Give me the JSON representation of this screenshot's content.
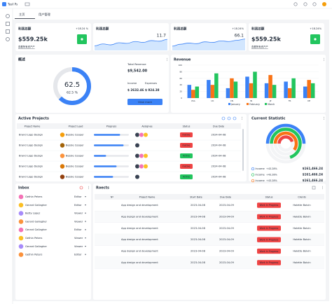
{
  "header": {
    "logo": "Tasil Ps",
    "tabs": [
      "主页",
      "用户管理"
    ]
  },
  "cards": [
    {
      "title": "利润总额",
      "change": "+18.24 %",
      "value": "$559.25k",
      "link": "查看所有资产产"
    },
    {
      "title": "利润总额",
      "value": "11.7",
      "trend": [
        30,
        42,
        36,
        50,
        46,
        58,
        52,
        64,
        60,
        72
      ]
    },
    {
      "title": "利润总额",
      "change": "+18.24%",
      "value": "66.1",
      "trend": [
        28,
        40,
        48,
        44,
        56,
        52,
        62,
        58,
        66,
        74
      ]
    },
    {
      "title": "利润总额",
      "change": "+18.24%",
      "value": "$559.25k",
      "link": "查看所有资产产"
    }
  ],
  "overview": {
    "title": "概述",
    "percent": 62.5,
    "percent_label": "62.5",
    "percent_caption": "62.5 %",
    "total_label": "Total Revenue",
    "total": "$9,542.00",
    "income_label": "Income",
    "income": "$ 2632.46",
    "expenses_label": "Expenses",
    "expenses": "$ 924.38",
    "button": "View more"
  },
  "revenue": {
    "title": "Revenue",
    "type": "bar",
    "categories": [
      "USA",
      "UK",
      "CN",
      "IN",
      "JP",
      "FR",
      "DE"
    ],
    "series": [
      {
        "name": "January",
        "color": "#3b82f6",
        "values": [
          40,
          55,
          30,
          65,
          45,
          50,
          35
        ]
      },
      {
        "name": "February",
        "color": "#f97316",
        "values": [
          25,
          40,
          60,
          45,
          70,
          30,
          55
        ]
      },
      {
        "name": "March",
        "color": "#22c55e",
        "values": [
          35,
          75,
          50,
          80,
          40,
          60,
          45
        ]
      }
    ],
    "ylim": [
      0,
      100
    ],
    "yticks": [
      0,
      20,
      40,
      60,
      80,
      100
    ]
  },
  "projects": {
    "title": "Active Projects",
    "columns": [
      "Project Name",
      "Project Lead",
      "Progress",
      "Assignee",
      "Status",
      "Due Date"
    ],
    "rows": [
      {
        "name": "Brand Logo Design",
        "lead": "Bessie Cooper",
        "progress": 75,
        "status": "Inative",
        "status_color": "#ef4444",
        "due": "2024-04-08"
      },
      {
        "name": "Brand Logo Design",
        "lead": "Bessie Cooper",
        "progress": 85,
        "status": "Inative",
        "status_color": "#ef4444",
        "due": "2024-04-08"
      },
      {
        "name": "Brand Logo Design",
        "lead": "Bessie Cooper",
        "progress": 35,
        "status": "Active",
        "status_color": "#22c55e",
        "due": "2024-04-08"
      },
      {
        "name": "Brand Logo Design",
        "lead": "Bessie Cooper",
        "progress": 65,
        "status": "Inative",
        "status_color": "#ef4444",
        "due": "2024-04-08"
      },
      {
        "name": "Brand Logo Design",
        "lead": "Bessie Cooper",
        "progress": 55,
        "status": "Active",
        "status_color": "#22c55e",
        "due": "2024-04-08"
      }
    ]
  },
  "statistic": {
    "title": "Current Statistic",
    "rings": [
      {
        "value": 50,
        "color": "#3b82f6"
      },
      {
        "value": 70,
        "color": "#22c55e"
      },
      {
        "value": 60,
        "color": "#f97316"
      },
      {
        "value": 45,
        "color": "#ef4444"
      }
    ],
    "items": [
      {
        "label": "Income",
        "change": "+43.28%",
        "amount": "$161,466.24",
        "color": "#3b82f6"
      },
      {
        "label": "Income",
        "change": "+43.28%",
        "amount": "$161,466.24",
        "color": "#22c55e"
      },
      {
        "label": "Income",
        "change": "+43.28%",
        "amount": "$161,466.24",
        "color": "#f97316"
      }
    ]
  },
  "inbox": {
    "title": "Inbox",
    "rows": [
      {
        "name": "Gethin Peters",
        "role": "Editor"
      },
      {
        "name": "Gerard Gallagher",
        "role": "Editor"
      },
      {
        "name": "Betty Lopez",
        "role": "Viewer"
      },
      {
        "name": "Gerard Gallagher",
        "role": "Viewer"
      },
      {
        "name": "Gerard Gallagher",
        "role": "Editor"
      },
      {
        "name": "Gethin Peters",
        "role": "Viewer"
      },
      {
        "name": "Gerard Gallagher",
        "role": "Viewer"
      },
      {
        "name": "Gethin Peters",
        "role": "Editor"
      }
    ]
  },
  "table": {
    "title": "Roects",
    "columns": [
      "Nº",
      "Project Name",
      "Start Date",
      "Due Date",
      "Status",
      "Clients"
    ],
    "rows": [
      {
        "name": "App design and development",
        "start": "2023-04-08",
        "due": "2023-04-09",
        "status": "Work In Progress",
        "client": "Halette Boivin"
      },
      {
        "name": "App design and development",
        "start": "2023-04-08",
        "due": "2023-04-09",
        "status": "Work In Progress",
        "client": "Halette Boivin"
      },
      {
        "name": "App design and development",
        "start": "2023-04-08",
        "due": "2023-04-09",
        "status": "Work In Progress",
        "client": "Halette Boivin"
      },
      {
        "name": "App design and development",
        "start": "2023-04-08",
        "due": "2023-04-09",
        "status": "Work In Progress",
        "client": "Halette Boivin"
      },
      {
        "name": "App design and development",
        "start": "2023-04-08",
        "due": "2023-04-09",
        "status": "Work In Progress",
        "client": "Halette Boivin"
      },
      {
        "name": "App design and development",
        "start": "2023-04-08",
        "due": "2023-04-09",
        "status": "Work In Progress",
        "client": "Halette Boivin"
      }
    ]
  }
}
